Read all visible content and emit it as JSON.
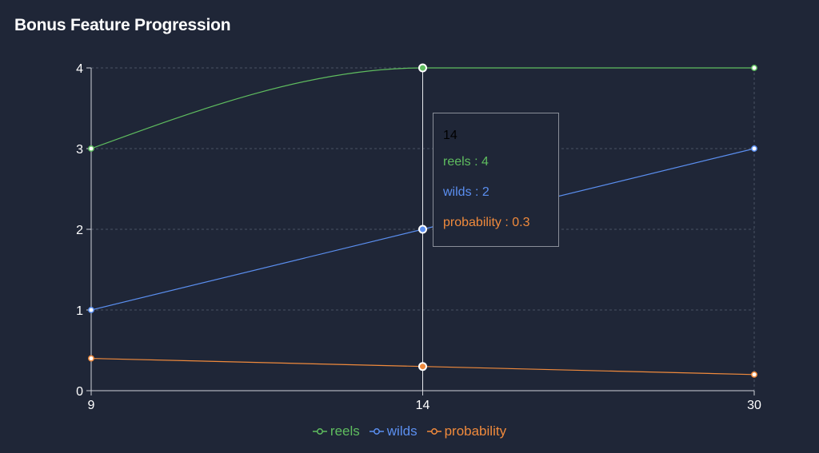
{
  "page": {
    "background": "#1f2637"
  },
  "chart_data": {
    "type": "line",
    "title": "Bonus Feature Progression",
    "xlabel": "",
    "ylabel": "",
    "categories": [
      "9",
      "14",
      "30"
    ],
    "ylim": [
      0,
      4
    ],
    "yticks": [
      "0",
      "1",
      "2",
      "3",
      "4"
    ],
    "grid": true,
    "legend_position": "bottom",
    "series": [
      {
        "name": "reels",
        "values": [
          3,
          4,
          4
        ],
        "color": "#5fbd5f",
        "curve": "monotone"
      },
      {
        "name": "wilds",
        "values": [
          1,
          2,
          3
        ],
        "color": "#5b8ff0",
        "curve": "linear"
      },
      {
        "name": "probability",
        "values": [
          0.4,
          0.3,
          0.2
        ],
        "color": "#f08a3c",
        "curve": "linear"
      }
    ],
    "active_index": 1
  },
  "tooltip": {
    "label": "14",
    "rows": [
      {
        "text": "reels : 4",
        "color": "#5fbd5f"
      },
      {
        "text": "wilds : 2",
        "color": "#5b8ff0"
      },
      {
        "text": "probability : 0.3",
        "color": "#f08a3c"
      }
    ]
  }
}
